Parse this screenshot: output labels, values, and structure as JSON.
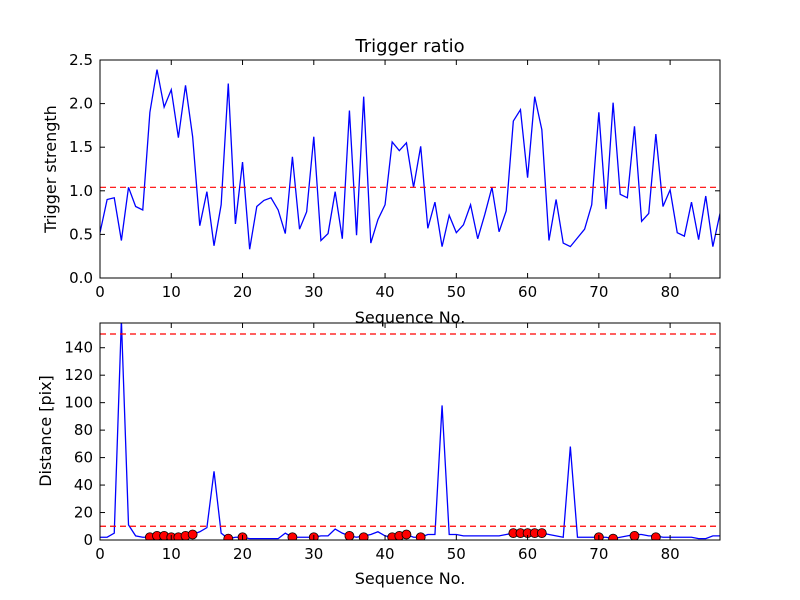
{
  "chart_data": [
    {
      "type": "line",
      "title": "Trigger ratio",
      "xlabel": "Sequence No.",
      "ylabel": "Trigger strength",
      "xlim": [
        0,
        87
      ],
      "ylim": [
        0,
        2.5
      ],
      "xticks": [
        0,
        10,
        20,
        30,
        40,
        50,
        60,
        70,
        80
      ],
      "yticks": [
        0,
        0.5,
        1.0,
        1.5,
        2.0,
        2.5
      ],
      "xtick_labels": [
        "0",
        "10",
        "20",
        "30",
        "40",
        "50",
        "60",
        "70",
        "80"
      ],
      "ytick_labels": [
        "0.0",
        "0.5",
        "1.0",
        "1.5",
        "2.0",
        "2.5"
      ],
      "grid": false,
      "series": [
        {
          "color": "#0000ff",
          "style": "solid",
          "x": [
            0,
            1,
            2,
            3,
            4,
            5,
            6,
            7,
            8,
            9,
            10,
            11,
            12,
            13,
            14,
            15,
            16,
            17,
            18,
            19,
            20,
            21,
            22,
            23,
            24,
            25,
            26,
            27,
            28,
            29,
            30,
            31,
            32,
            33,
            34,
            35,
            36,
            37,
            38,
            39,
            40,
            41,
            42,
            43,
            44,
            45,
            46,
            47,
            48,
            49,
            50,
            51,
            52,
            53,
            54,
            55,
            56,
            57,
            58,
            59,
            60,
            61,
            62,
            63,
            64,
            65,
            66,
            67,
            68,
            69,
            70,
            71,
            72,
            73,
            74,
            75,
            76,
            77,
            78,
            79,
            80,
            81,
            82,
            83,
            84,
            85,
            86,
            87
          ],
          "y": [
            0.52,
            0.9,
            0.92,
            0.43,
            1.04,
            0.82,
            0.78,
            1.9,
            2.39,
            1.96,
            2.16,
            1.61,
            2.21,
            1.62,
            0.6,
            0.99,
            0.37,
            0.84,
            2.23,
            0.62,
            1.33,
            0.33,
            0.82,
            0.89,
            0.92,
            0.78,
            0.51,
            1.39,
            0.56,
            0.76,
            1.62,
            0.43,
            0.51,
            0.99,
            0.45,
            1.92,
            0.49,
            2.08,
            0.4,
            0.67,
            0.84,
            1.56,
            1.46,
            1.55,
            1.04,
            1.51,
            0.57,
            0.87,
            0.36,
            0.72,
            0.52,
            0.61,
            0.84,
            0.45,
            0.73,
            1.04,
            0.53,
            0.77,
            1.8,
            1.93,
            1.15,
            2.08,
            1.7,
            0.43,
            0.9,
            0.4,
            0.36,
            0.46,
            0.56,
            0.84,
            1.9,
            0.79,
            2.01,
            0.96,
            0.92,
            1.74,
            0.65,
            0.74,
            1.65,
            0.82,
            1.01,
            0.52,
            0.48,
            0.87,
            0.44,
            0.94,
            0.36,
            0.74
          ]
        },
        {
          "color": "#ff0000",
          "style": "dashed",
          "x": [
            0,
            87
          ],
          "y": [
            1.04,
            1.04
          ]
        }
      ]
    },
    {
      "type": "line",
      "title": "",
      "xlabel": "Sequence No.",
      "ylabel": "Distance [pix]",
      "xlim": [
        0,
        87
      ],
      "ylim": [
        0,
        158
      ],
      "xticks": [
        0,
        10,
        20,
        30,
        40,
        50,
        60,
        70,
        80
      ],
      "yticks": [
        0,
        20,
        40,
        60,
        80,
        100,
        120,
        140
      ],
      "xtick_labels": [
        "0",
        "10",
        "20",
        "30",
        "40",
        "50",
        "60",
        "70",
        "80"
      ],
      "ytick_labels": [
        "0",
        "20",
        "40",
        "60",
        "80",
        "100",
        "120",
        "140"
      ],
      "grid": false,
      "series": [
        {
          "color": "#0000ff",
          "style": "solid",
          "x": [
            0,
            1,
            2,
            3,
            4,
            5,
            6,
            7,
            8,
            9,
            10,
            11,
            12,
            13,
            14,
            15,
            16,
            17,
            18,
            19,
            20,
            21,
            22,
            23,
            24,
            25,
            26,
            27,
            28,
            29,
            30,
            31,
            32,
            33,
            34,
            35,
            36,
            37,
            38,
            39,
            40,
            41,
            42,
            43,
            44,
            45,
            46,
            47,
            48,
            49,
            50,
            51,
            52,
            53,
            54,
            55,
            56,
            57,
            58,
            59,
            60,
            61,
            62,
            63,
            64,
            65,
            66,
            67,
            68,
            69,
            70,
            71,
            72,
            73,
            74,
            75,
            76,
            77,
            78,
            79,
            80,
            81,
            82,
            83,
            84,
            85,
            86,
            87
          ],
          "y": [
            2,
            2,
            5,
            160,
            11,
            3,
            2,
            2,
            3,
            3,
            2,
            2,
            3,
            4,
            6,
            9,
            50,
            5,
            1,
            2,
            2,
            1,
            1,
            1,
            1,
            1,
            5,
            2,
            2,
            2,
            2,
            3,
            3,
            8,
            5,
            3,
            2,
            3,
            4,
            6,
            3,
            2,
            3,
            4,
            2,
            2,
            4,
            4,
            98,
            4,
            4,
            3,
            3,
            3,
            3,
            3,
            3,
            4,
            5,
            5,
            5,
            5,
            5,
            4,
            3,
            2,
            68,
            2,
            2,
            2,
            2,
            2,
            1,
            2,
            3,
            4,
            4,
            3,
            3,
            2,
            2,
            2,
            2,
            2,
            1,
            1,
            3,
            3
          ]
        },
        {
          "color": "#ff0000",
          "style": "dashed",
          "x": [
            0,
            87
          ],
          "y": [
            150,
            150
          ]
        },
        {
          "color": "#ff0000",
          "style": "dashed",
          "x": [
            0,
            87
          ],
          "y": [
            10,
            10
          ]
        },
        {
          "color": "#ff0000",
          "style": "markers",
          "x": [
            7,
            8,
            9,
            10,
            11,
            12,
            13,
            18,
            20,
            27,
            30,
            35,
            37,
            41,
            42,
            43,
            45,
            58,
            59,
            60,
            61,
            62,
            70,
            72,
            75,
            78
          ],
          "y": [
            2,
            3,
            3,
            2,
            2,
            3,
            4,
            1,
            2,
            2,
            2,
            3,
            2,
            2,
            3,
            4,
            2,
            5,
            5,
            5,
            5,
            5,
            2,
            1,
            3,
            2
          ]
        }
      ]
    }
  ]
}
